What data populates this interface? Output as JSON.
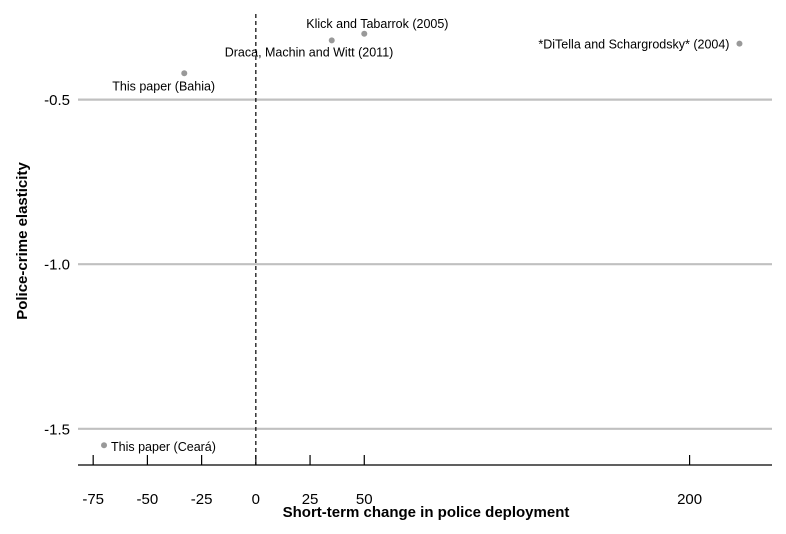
{
  "chart_data": {
    "type": "scatter",
    "title": "",
    "xlabel": "Short-term change in police deployment",
    "ylabel": "Police-crime elasticity",
    "xlim": [
      -82,
      238
    ],
    "ylim": [
      -1.61,
      -0.24
    ],
    "x_ticks": [
      -75,
      -50,
      -25,
      0,
      25,
      50,
      200
    ],
    "x_tick_labels": [
      "-75",
      "-50",
      "-25",
      "0",
      "25",
      "50",
      "200"
    ],
    "y_ticks": [
      -0.5,
      -1.0,
      -1.5
    ],
    "y_tick_labels": [
      "-0.5",
      "-1.0",
      "-1.5"
    ],
    "grid": "horizontal",
    "reference_line_x": 0,
    "point_color": "#999999",
    "points": [
      {
        "label": "Klick and Tabarrok (2005)",
        "x": 50,
        "y": -0.3
      },
      {
        "label": "Draca, Machin and Witt (2011)",
        "x": 35,
        "y": -0.32
      },
      {
        "label": "*DiTella and Schargrodsky* (2004)",
        "x": 223,
        "y": -0.33
      },
      {
        "label": "This paper (Bahia)",
        "x": -33,
        "y": -0.42
      },
      {
        "label": "This paper (Ceará)",
        "x": -70,
        "y": -1.55
      }
    ]
  }
}
